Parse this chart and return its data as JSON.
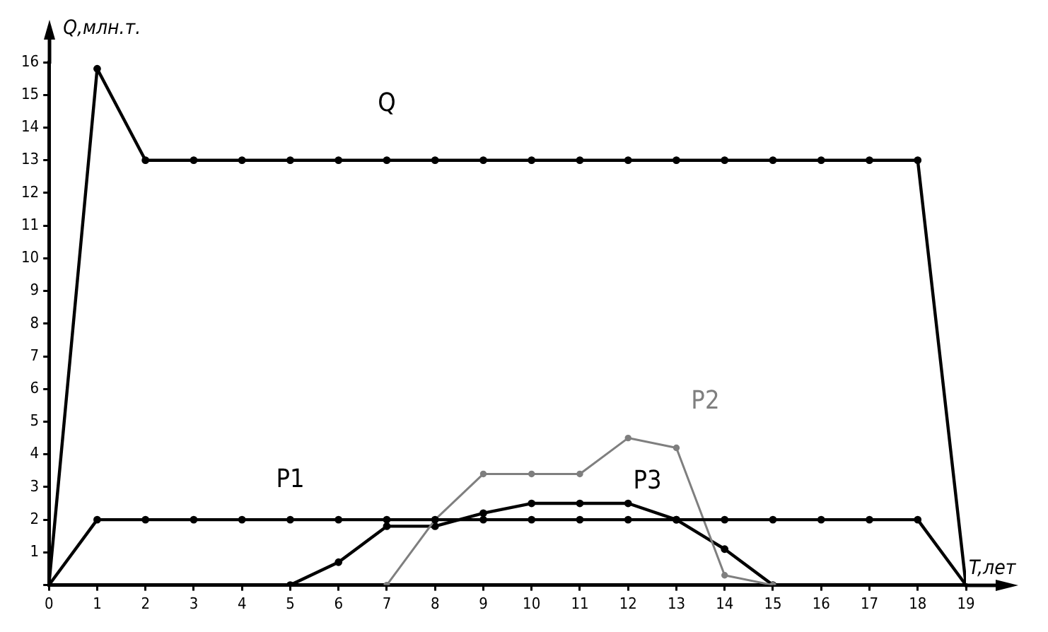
{
  "chart_data": {
    "type": "line",
    "xlabel": "T,лет",
    "ylabel": "Q,млн.т.",
    "x": [
      0,
      1,
      2,
      3,
      4,
      5,
      6,
      7,
      8,
      9,
      10,
      11,
      12,
      13,
      14,
      15,
      16,
      17,
      18,
      19
    ],
    "series": [
      {
        "name": "Q",
        "color": "#000000",
        "values": [
          0,
          15.8,
          13,
          13,
          13,
          13,
          13,
          13,
          13,
          13,
          13,
          13,
          13,
          13,
          13,
          13,
          13,
          13,
          13,
          0
        ]
      },
      {
        "name": "P1",
        "color": "#000000",
        "values": [
          0,
          2,
          2,
          2,
          2,
          2,
          2,
          2,
          2,
          2,
          2,
          2,
          2,
          2,
          2,
          2,
          2,
          2,
          2,
          0
        ]
      },
      {
        "name": "P2",
        "color": "#7f7f7f",
        "values": [
          null,
          null,
          null,
          null,
          null,
          null,
          null,
          0,
          2,
          3.4,
          3.4,
          3.4,
          4.5,
          4.2,
          0.3,
          0,
          null,
          null,
          null,
          null
        ]
      },
      {
        "name": "P3",
        "color": "#000000",
        "values": [
          null,
          null,
          null,
          null,
          null,
          0,
          0.7,
          1.8,
          1.8,
          2.2,
          2.5,
          2.5,
          2.5,
          2,
          1.1,
          0,
          null,
          null,
          null,
          null
        ]
      }
    ],
    "xlim": [
      0,
      19
    ],
    "xticks": [
      0,
      1,
      2,
      3,
      4,
      5,
      6,
      7,
      8,
      9,
      10,
      11,
      12,
      13,
      14,
      15,
      16,
      17,
      18,
      19
    ],
    "ylim": [
      0,
      16
    ],
    "yticks": [
      {
        "value": 0,
        "label": null
      },
      1,
      2,
      3,
      4,
      5,
      6,
      7,
      8,
      9,
      10,
      11,
      12,
      13,
      14,
      15,
      16
    ],
    "grid": false,
    "legend": false,
    "marker": "circle",
    "line_style": "solid"
  }
}
